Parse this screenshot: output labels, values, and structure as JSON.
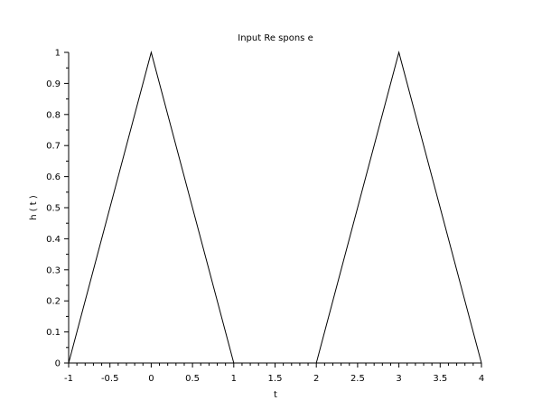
{
  "chart_data": {
    "type": "line",
    "title": "Input Re spons e",
    "xlabel": "t",
    "ylabel": "h ( t )",
    "xlim": [
      -1,
      4
    ],
    "ylim": [
      0,
      1
    ],
    "grid": false,
    "legend": "none",
    "x_ticks": [
      "-1",
      "-0.5",
      "0",
      "0.5",
      "1",
      "1.5",
      "2",
      "2.5",
      "3",
      "3.5",
      "4"
    ],
    "y_ticks": [
      "0",
      "0.1",
      "0.2",
      "0.3",
      "0.4",
      "0.5",
      "0.6",
      "0.7",
      "0.8",
      "0.9",
      "1"
    ],
    "series": [
      {
        "x": [
          -1,
          0,
          1
        ],
        "y": [
          0,
          1,
          0
        ]
      },
      {
        "x": [
          2,
          3,
          4
        ],
        "y": [
          0,
          1,
          0
        ]
      }
    ],
    "colors": {
      "line": "#000000",
      "axis": "#000000"
    }
  }
}
